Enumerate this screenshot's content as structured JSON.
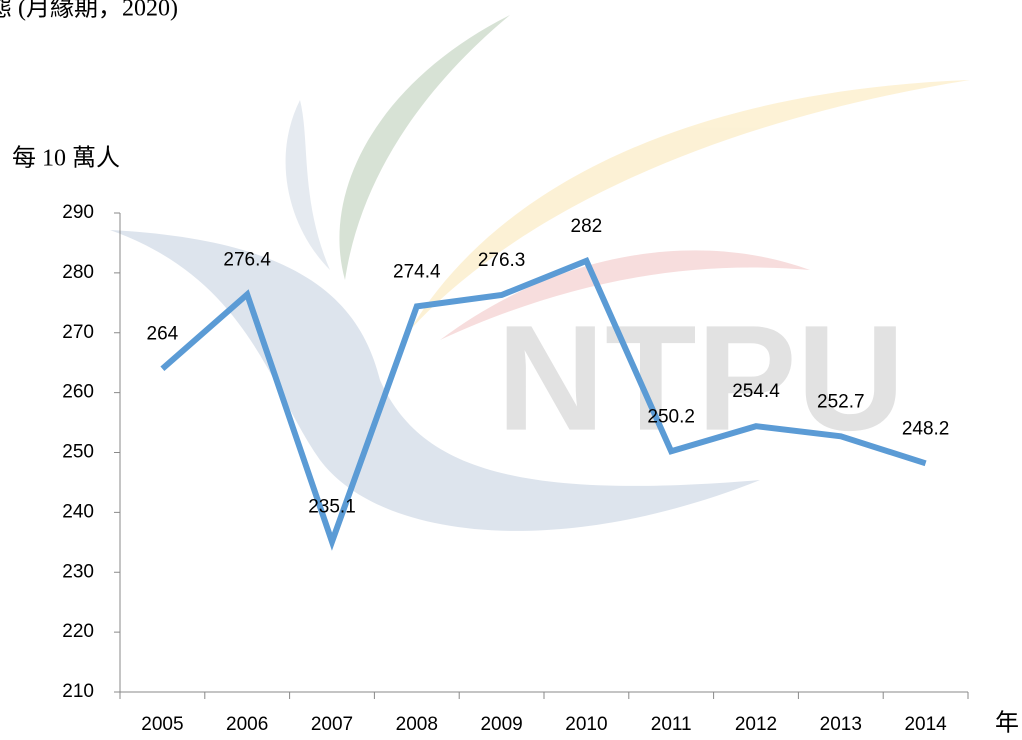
{
  "header": "態 (月緣期，2020)",
  "watermark": "NTPU",
  "chart_data": {
    "type": "line",
    "y_label": "每 10 萬人",
    "x_label": "年",
    "categories": [
      "2005",
      "2006",
      "2007",
      "2008",
      "2009",
      "2010",
      "2011",
      "2012",
      "2013",
      "2014"
    ],
    "series": [
      {
        "name": "每 10 萬人",
        "color": "#5b9bd5",
        "values": [
          264,
          276.4,
          235.1,
          274.4,
          276.3,
          282,
          250.2,
          254.4,
          252.7,
          248.2
        ]
      }
    ],
    "ylim": [
      210,
      290
    ],
    "yticks": [
      210,
      220,
      230,
      240,
      250,
      260,
      270,
      280,
      290
    ],
    "grid": false
  }
}
